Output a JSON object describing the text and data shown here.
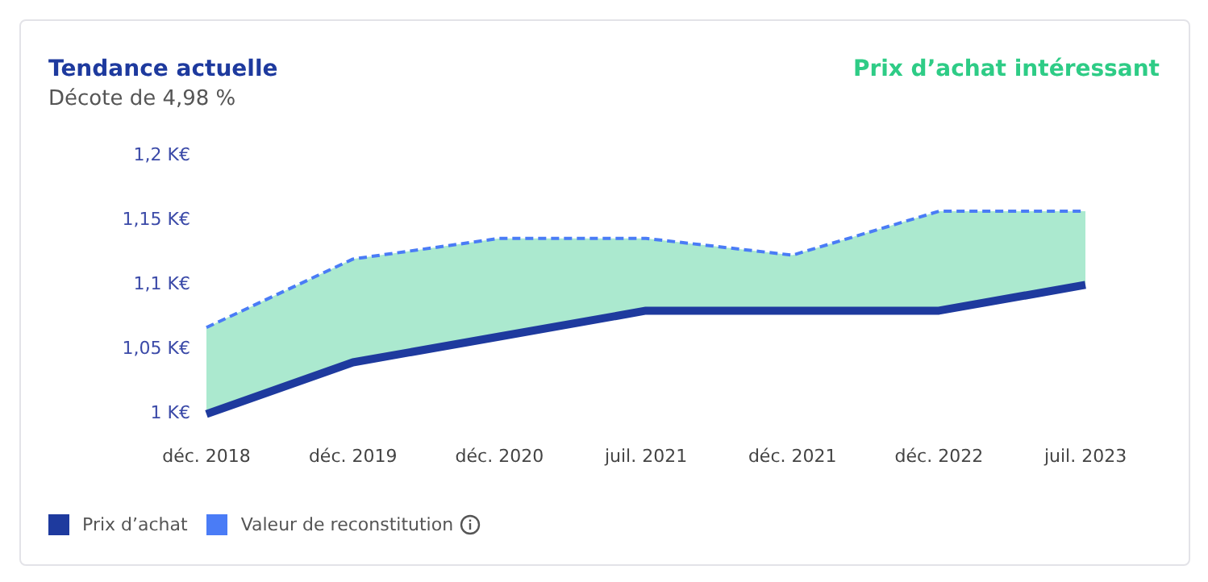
{
  "chart_data": {
    "type": "line",
    "title": "Tendance actuelle",
    "subtitle": "Décote de 4,98 %",
    "annotations": [
      "Prix d’achat intéressant"
    ],
    "categories": [
      "déc. 2018",
      "déc. 2019",
      "déc. 2020",
      "juil. 2021",
      "déc. 2021",
      "déc. 2022",
      "juil. 2023"
    ],
    "series": [
      {
        "name": "Prix d’achat",
        "color": "#1e3a9e",
        "line_style": "solid",
        "values": [
          1.0,
          1.04,
          1.06,
          1.08,
          1.08,
          1.08,
          1.1
        ]
      },
      {
        "name": "Valeur de reconstitution",
        "type": "area",
        "color": "#4a7cf6",
        "line_style": "dashed",
        "values": [
          1.067,
          1.12,
          1.136,
          1.136,
          1.123,
          1.157,
          1.157
        ]
      }
    ],
    "ylim": [
      1,
      1.2
    ],
    "yticks": [
      {
        "value": 1,
        "label": "1 K€"
      },
      {
        "value": 1.05,
        "label": "1,05 K€"
      },
      {
        "value": 1.1,
        "label": "1,1 K€"
      },
      {
        "value": 1.15,
        "label": "1,15 K€"
      },
      {
        "value": 1.2,
        "label": "1,2 K€"
      }
    ],
    "grid": false,
    "legend": "bottom left",
    "marker": "none"
  }
}
